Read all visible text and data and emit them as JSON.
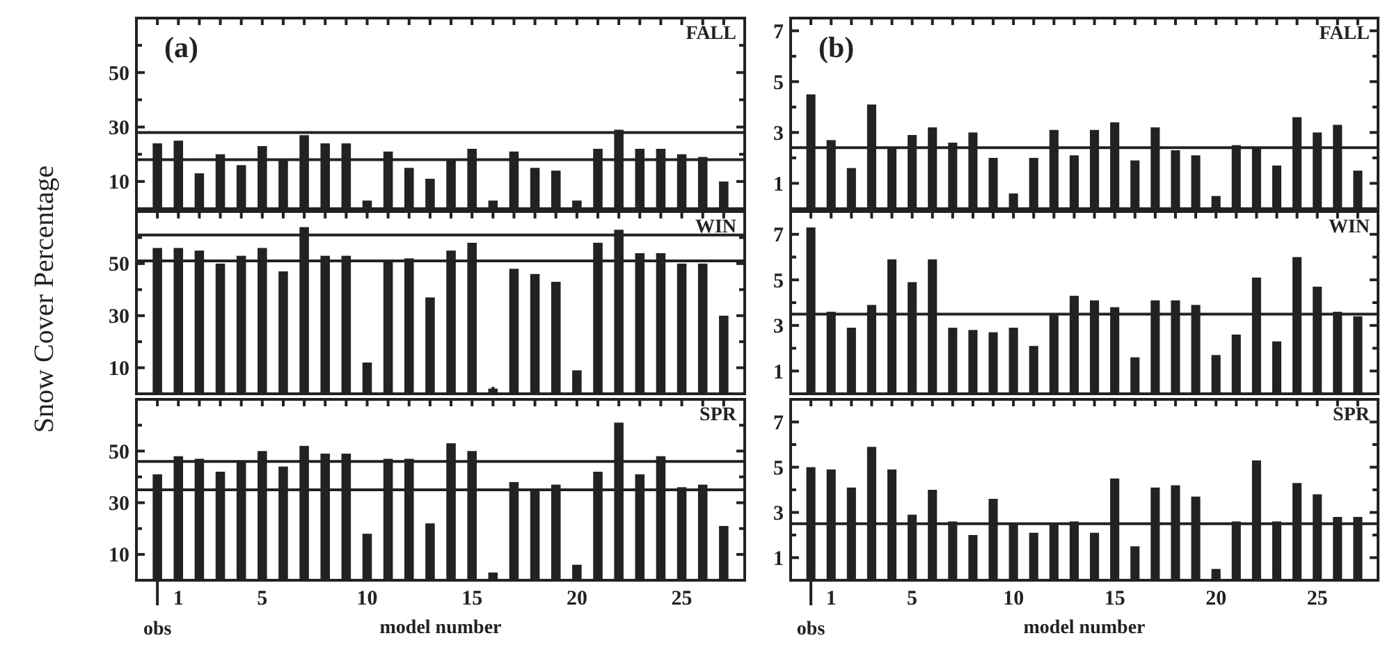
{
  "chart_data": [
    {
      "type": "bar",
      "title": "(a)",
      "subtitle": "FALL",
      "ylabel": "Snow Cover Percentage",
      "tick_labels": "y",
      "x": [
        0,
        1,
        2,
        3,
        4,
        5,
        6,
        7,
        8,
        9,
        10,
        11,
        12,
        13,
        14,
        15,
        16,
        17,
        18,
        19,
        20,
        21,
        22,
        23,
        24,
        25,
        26,
        27
      ],
      "values": [
        24,
        25,
        13,
        20,
        16,
        23,
        18,
        27,
        24,
        24,
        3,
        21,
        15,
        11,
        18,
        22,
        3,
        21,
        15,
        14,
        3,
        22,
        29,
        22,
        22,
        20,
        19,
        10
      ],
      "color": "#222222",
      "xlim": [
        -1,
        28
      ],
      "ylim": [
        0,
        70
      ],
      "xticks": [
        {
          "value": 0,
          "label": null
        },
        1,
        {
          "value": 2,
          "label": null
        },
        {
          "value": 3,
          "label": null
        },
        {
          "value": 4,
          "label": null
        },
        5,
        {
          "value": 6,
          "label": null
        },
        {
          "value": 7,
          "label": null
        },
        {
          "value": 8,
          "label": null
        },
        {
          "value": 9,
          "label": null
        },
        10,
        {
          "value": 11,
          "label": null
        },
        {
          "value": 12,
          "label": null
        },
        {
          "value": 13,
          "label": null
        },
        {
          "value": 14,
          "label": null
        },
        15,
        {
          "value": 16,
          "label": null
        },
        {
          "value": 17,
          "label": null
        },
        {
          "value": 18,
          "label": null
        },
        {
          "value": 19,
          "label": null
        },
        20,
        {
          "value": 21,
          "label": null
        },
        {
          "value": 22,
          "label": null
        },
        {
          "value": 23,
          "label": null
        },
        {
          "value": 24,
          "label": null
        },
        25,
        {
          "value": 26,
          "label": null
        },
        {
          "value": 27,
          "label": null
        }
      ],
      "yticks": [
        10,
        {
          "value": 20,
          "label": null
        },
        30,
        {
          "value": 40,
          "label": null
        },
        50,
        {
          "value": 60,
          "label": null
        }
      ],
      "ref_lines": [
        {
          "axis": "y",
          "value": 28
        },
        {
          "axis": "y",
          "value": 18
        }
      ]
    },
    {
      "type": "bar",
      "subtitle": "WIN",
      "tick_labels": "y",
      "x": [
        0,
        1,
        2,
        3,
        4,
        5,
        6,
        7,
        8,
        9,
        10,
        11,
        12,
        13,
        14,
        15,
        16,
        17,
        18,
        19,
        20,
        21,
        22,
        23,
        24,
        25,
        26,
        27
      ],
      "values": [
        56,
        56,
        55,
        50,
        53,
        56,
        47,
        64,
        53,
        53,
        12,
        51,
        52,
        37,
        55,
        58,
        2,
        48,
        46,
        43,
        9,
        58,
        63,
        54,
        54,
        50,
        50,
        30
      ],
      "color": "#222222",
      "xlim": [
        -1,
        28
      ],
      "ylim": [
        0,
        70
      ],
      "xticks": [
        {
          "value": 0,
          "label": null
        },
        1,
        {
          "value": 2,
          "label": null
        },
        {
          "value": 3,
          "label": null
        },
        {
          "value": 4,
          "label": null
        },
        5,
        {
          "value": 6,
          "label": null
        },
        {
          "value": 7,
          "label": null
        },
        {
          "value": 8,
          "label": null
        },
        {
          "value": 9,
          "label": null
        },
        10,
        {
          "value": 11,
          "label": null
        },
        {
          "value": 12,
          "label": null
        },
        {
          "value": 13,
          "label": null
        },
        {
          "value": 14,
          "label": null
        },
        15,
        {
          "value": 16,
          "label": null
        },
        {
          "value": 17,
          "label": null
        },
        {
          "value": 18,
          "label": null
        },
        {
          "value": 19,
          "label": null
        },
        20,
        {
          "value": 21,
          "label": null
        },
        {
          "value": 22,
          "label": null
        },
        {
          "value": 23,
          "label": null
        },
        {
          "value": 24,
          "label": null
        },
        25,
        {
          "value": 26,
          "label": null
        },
        {
          "value": 27,
          "label": null
        }
      ],
      "yticks": [
        10,
        {
          "value": 20,
          "label": null
        },
        30,
        {
          "value": 40,
          "label": null
        },
        50,
        {
          "value": 60,
          "label": null
        }
      ],
      "ref_lines": [
        {
          "axis": "y",
          "value": 61
        },
        {
          "axis": "y",
          "value": 51
        }
      ]
    },
    {
      "type": "bar",
      "subtitle": "SPR",
      "xlabel": "model number",
      "x": [
        0,
        1,
        2,
        3,
        4,
        5,
        6,
        7,
        8,
        9,
        10,
        11,
        12,
        13,
        14,
        15,
        16,
        17,
        18,
        19,
        20,
        21,
        22,
        23,
        24,
        25,
        26,
        27
      ],
      "values": [
        41,
        48,
        47,
        42,
        46,
        50,
        44,
        52,
        49,
        49,
        18,
        47,
        47,
        22,
        53,
        50,
        3,
        38,
        35,
        37,
        6,
        42,
        61,
        41,
        48,
        36,
        37,
        21
      ],
      "color": "#222222",
      "xlim": [
        -1,
        28
      ],
      "ylim": [
        0,
        70
      ],
      "xticks": [
        {
          "value": 0,
          "label": null
        },
        1,
        {
          "value": 2,
          "label": null
        },
        {
          "value": 3,
          "label": null
        },
        {
          "value": 4,
          "label": null
        },
        5,
        {
          "value": 6,
          "label": null
        },
        {
          "value": 7,
          "label": null
        },
        {
          "value": 8,
          "label": null
        },
        {
          "value": 9,
          "label": null
        },
        10,
        {
          "value": 11,
          "label": null
        },
        {
          "value": 12,
          "label": null
        },
        {
          "value": 13,
          "label": null
        },
        {
          "value": 14,
          "label": null
        },
        15,
        {
          "value": 16,
          "label": null
        },
        {
          "value": 17,
          "label": null
        },
        {
          "value": 18,
          "label": null
        },
        {
          "value": 19,
          "label": null
        },
        20,
        {
          "value": 21,
          "label": null
        },
        {
          "value": 22,
          "label": null
        },
        {
          "value": 23,
          "label": null
        },
        {
          "value": 24,
          "label": null
        },
        25,
        {
          "value": 26,
          "label": null
        },
        {
          "value": 27,
          "label": null
        }
      ],
      "yticks": [
        10,
        {
          "value": 20,
          "label": null
        },
        30,
        {
          "value": 40,
          "label": null
        },
        50,
        {
          "value": 60,
          "label": null
        }
      ],
      "ref_lines": [
        {
          "axis": "y",
          "value": 46
        },
        {
          "axis": "y",
          "value": 35
        }
      ],
      "annotations": [
        {
          "text": "obs",
          "x": 0
        }
      ]
    },
    {
      "type": "bar",
      "title": "(b)",
      "subtitle": "FALL",
      "tick_labels": "y",
      "x": [
        0,
        1,
        2,
        3,
        4,
        5,
        6,
        7,
        8,
        9,
        10,
        11,
        12,
        13,
        14,
        15,
        16,
        17,
        18,
        19,
        20,
        21,
        22,
        23,
        24,
        25,
        26,
        27
      ],
      "values": [
        4.5,
        2.7,
        1.6,
        4.1,
        2.4,
        2.9,
        3.2,
        2.6,
        3.0,
        2.0,
        0.6,
        2.0,
        3.1,
        2.1,
        3.1,
        3.4,
        1.9,
        3.2,
        2.3,
        2.1,
        0.5,
        2.5,
        2.4,
        1.7,
        3.6,
        3.0,
        3.3,
        1.5
      ],
      "color": "#222222",
      "xlim": [
        -1,
        28
      ],
      "ylim": [
        0,
        7.5
      ],
      "xticks": [
        {
          "value": 0,
          "label": null
        },
        1,
        {
          "value": 2,
          "label": null
        },
        {
          "value": 3,
          "label": null
        },
        {
          "value": 4,
          "label": null
        },
        5,
        {
          "value": 6,
          "label": null
        },
        {
          "value": 7,
          "label": null
        },
        {
          "value": 8,
          "label": null
        },
        {
          "value": 9,
          "label": null
        },
        10,
        {
          "value": 11,
          "label": null
        },
        {
          "value": 12,
          "label": null
        },
        {
          "value": 13,
          "label": null
        },
        {
          "value": 14,
          "label": null
        },
        15,
        {
          "value": 16,
          "label": null
        },
        {
          "value": 17,
          "label": null
        },
        {
          "value": 18,
          "label": null
        },
        {
          "value": 19,
          "label": null
        },
        20,
        {
          "value": 21,
          "label": null
        },
        {
          "value": 22,
          "label": null
        },
        {
          "value": 23,
          "label": null
        },
        {
          "value": 24,
          "label": null
        },
        25,
        {
          "value": 26,
          "label": null
        },
        {
          "value": 27,
          "label": null
        }
      ],
      "yticks": [
        1,
        {
          "value": 2,
          "label": null
        },
        3,
        {
          "value": 4,
          "label": null
        },
        5,
        {
          "value": 6,
          "label": null
        },
        7
      ],
      "ref_lines": [
        {
          "axis": "y",
          "value": 2.4
        }
      ]
    },
    {
      "type": "bar",
      "subtitle": "WIN",
      "tick_labels": "y",
      "x": [
        0,
        1,
        2,
        3,
        4,
        5,
        6,
        7,
        8,
        9,
        10,
        11,
        12,
        13,
        14,
        15,
        16,
        17,
        18,
        19,
        20,
        21,
        22,
        23,
        24,
        25,
        26,
        27
      ],
      "values": [
        7.3,
        3.6,
        2.9,
        3.9,
        5.9,
        4.9,
        5.9,
        2.9,
        2.8,
        2.7,
        2.9,
        2.1,
        3.5,
        4.3,
        4.1,
        3.8,
        1.6,
        4.1,
        4.1,
        3.9,
        1.7,
        2.6,
        5.1,
        2.3,
        6.0,
        4.7,
        3.6,
        3.4
      ],
      "color": "#222222",
      "xlim": [
        -1,
        28
      ],
      "ylim": [
        0,
        8
      ],
      "xticks": [
        {
          "value": 0,
          "label": null
        },
        1,
        {
          "value": 2,
          "label": null
        },
        {
          "value": 3,
          "label": null
        },
        {
          "value": 4,
          "label": null
        },
        5,
        {
          "value": 6,
          "label": null
        },
        {
          "value": 7,
          "label": null
        },
        {
          "value": 8,
          "label": null
        },
        {
          "value": 9,
          "label": null
        },
        10,
        {
          "value": 11,
          "label": null
        },
        {
          "value": 12,
          "label": null
        },
        {
          "value": 13,
          "label": null
        },
        {
          "value": 14,
          "label": null
        },
        15,
        {
          "value": 16,
          "label": null
        },
        {
          "value": 17,
          "label": null
        },
        {
          "value": 18,
          "label": null
        },
        {
          "value": 19,
          "label": null
        },
        20,
        {
          "value": 21,
          "label": null
        },
        {
          "value": 22,
          "label": null
        },
        {
          "value": 23,
          "label": null
        },
        {
          "value": 24,
          "label": null
        },
        25,
        {
          "value": 26,
          "label": null
        },
        {
          "value": 27,
          "label": null
        }
      ],
      "yticks": [
        1,
        {
          "value": 2,
          "label": null
        },
        3,
        {
          "value": 4,
          "label": null
        },
        5,
        {
          "value": 6,
          "label": null
        },
        7
      ],
      "ref_lines": [
        {
          "axis": "y",
          "value": 3.5
        }
      ]
    },
    {
      "type": "bar",
      "subtitle": "SPR",
      "xlabel": "model number",
      "x": [
        0,
        1,
        2,
        3,
        4,
        5,
        6,
        7,
        8,
        9,
        10,
        11,
        12,
        13,
        14,
        15,
        16,
        17,
        18,
        19,
        20,
        21,
        22,
        23,
        24,
        25,
        26,
        27
      ],
      "values": [
        5.0,
        4.9,
        4.1,
        5.9,
        4.9,
        2.9,
        4.0,
        2.6,
        2.0,
        3.6,
        2.5,
        2.1,
        2.5,
        2.6,
        2.1,
        4.5,
        1.5,
        4.1,
        4.2,
        3.7,
        0.5,
        2.6,
        5.3,
        2.6,
        4.3,
        3.8,
        2.8,
        2.8
      ],
      "color": "#222222",
      "xlim": [
        -1,
        28
      ],
      "ylim": [
        0,
        8
      ],
      "xticks": [
        {
          "value": 0,
          "label": null
        },
        1,
        {
          "value": 2,
          "label": null
        },
        {
          "value": 3,
          "label": null
        },
        {
          "value": 4,
          "label": null
        },
        5,
        {
          "value": 6,
          "label": null
        },
        {
          "value": 7,
          "label": null
        },
        {
          "value": 8,
          "label": null
        },
        {
          "value": 9,
          "label": null
        },
        10,
        {
          "value": 11,
          "label": null
        },
        {
          "value": 12,
          "label": null
        },
        {
          "value": 13,
          "label": null
        },
        {
          "value": 14,
          "label": null
        },
        15,
        {
          "value": 16,
          "label": null
        },
        {
          "value": 17,
          "label": null
        },
        {
          "value": 18,
          "label": null
        },
        {
          "value": 19,
          "label": null
        },
        20,
        {
          "value": 21,
          "label": null
        },
        {
          "value": 22,
          "label": null
        },
        {
          "value": 23,
          "label": null
        },
        {
          "value": 24,
          "label": null
        },
        25,
        {
          "value": 26,
          "label": null
        },
        {
          "value": 27,
          "label": null
        }
      ],
      "yticks": [
        1,
        {
          "value": 2,
          "label": null
        },
        3,
        {
          "value": 4,
          "label": null
        },
        5,
        {
          "value": 6,
          "label": null
        },
        7
      ],
      "ref_lines": [
        {
          "axis": "y",
          "value": 2.5
        }
      ],
      "annotations": [
        {
          "text": "obs",
          "x": 0
        }
      ]
    }
  ]
}
